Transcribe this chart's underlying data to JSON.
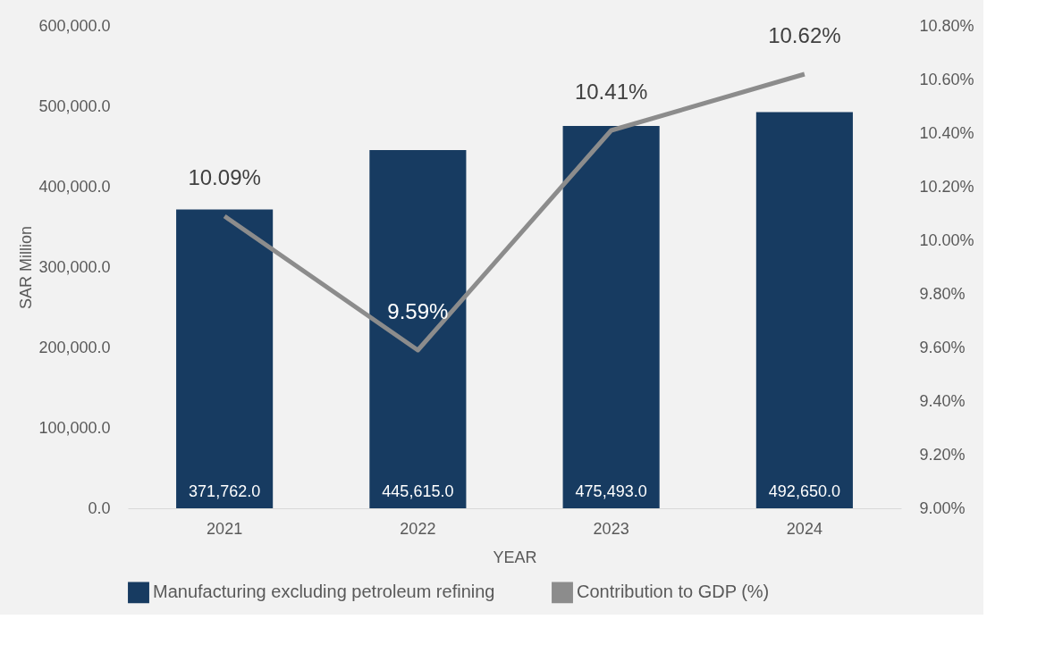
{
  "chart_data": {
    "type": "bar",
    "xlabel": "YEAR",
    "ylabel": "SAR Million",
    "categories": [
      "2021",
      "2022",
      "2023",
      "2024"
    ],
    "series": [
      {
        "name": "Manufacturing excluding petroleum refining",
        "color": "#173b61",
        "values": [
          371762.0,
          445615.0,
          475493.0,
          492650.0
        ],
        "value_labels": [
          "371,762.0",
          "445,615.0",
          "475,493.0",
          "492,650.0"
        ]
      },
      {
        "name": "Contribution to GDP (%)",
        "type": "line",
        "axis": "y2",
        "color": "#8c8c8c",
        "values": [
          10.09,
          9.59,
          10.41,
          10.62
        ],
        "value_labels": [
          "10.09%",
          "9.59%",
          "10.41%",
          "10.62%"
        ]
      }
    ],
    "ylim": [
      0,
      600000
    ],
    "yticks": [
      {
        "value": 0,
        "label": "0.0"
      },
      {
        "value": 100000,
        "label": "100,000.0"
      },
      {
        "value": 200000,
        "label": "200,000.0"
      },
      {
        "value": 300000,
        "label": "300,000.0"
      },
      {
        "value": 400000,
        "label": "400,000.0"
      },
      {
        "value": 500000,
        "label": "500,000.0"
      },
      {
        "value": 600000,
        "label": "600,000.0"
      }
    ],
    "y2lim": [
      9.0,
      10.8
    ],
    "y2ticks": [
      {
        "value": 9.0,
        "label": "9.00%"
      },
      {
        "value": 9.2,
        "label": "9.20%"
      },
      {
        "value": 9.4,
        "label": "9.40%"
      },
      {
        "value": 9.6,
        "label": "9.60%"
      },
      {
        "value": 9.8,
        "label": "9.80%"
      },
      {
        "value": 10.0,
        "label": "10.00%"
      },
      {
        "value": 10.2,
        "label": "10.20%"
      },
      {
        "value": 10.4,
        "label": "10.40%"
      },
      {
        "value": 10.6,
        "label": "10.60%"
      },
      {
        "value": 10.8,
        "label": "10.80%"
      }
    ],
    "grid": false,
    "legend": "bottom",
    "marker": "none",
    "line_style": "solid"
  }
}
